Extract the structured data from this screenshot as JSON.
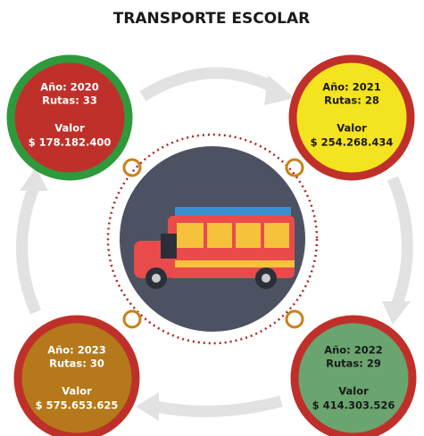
{
  "header": {
    "title": "TRANSPORTE ESCOLAR"
  },
  "nodes": [
    {
      "year": "Año: 2020",
      "routes": "Rutas: 33",
      "value_title": "Valor",
      "value": "$ 178.182.400"
    },
    {
      "year": "Año: 2021",
      "routes": "Rutas: 28",
      "value_title": "Valor",
      "value": "$ 254.268.434"
    },
    {
      "year": "Año: 2022",
      "routes": "Rutas: 29",
      "value_title": "Valor",
      "value": "$ 414.303.526"
    },
    {
      "year": "Año: 2023",
      "routes": "Rutas: 30",
      "value_title": "Valor",
      "value": "$ 575.653.625"
    }
  ]
}
